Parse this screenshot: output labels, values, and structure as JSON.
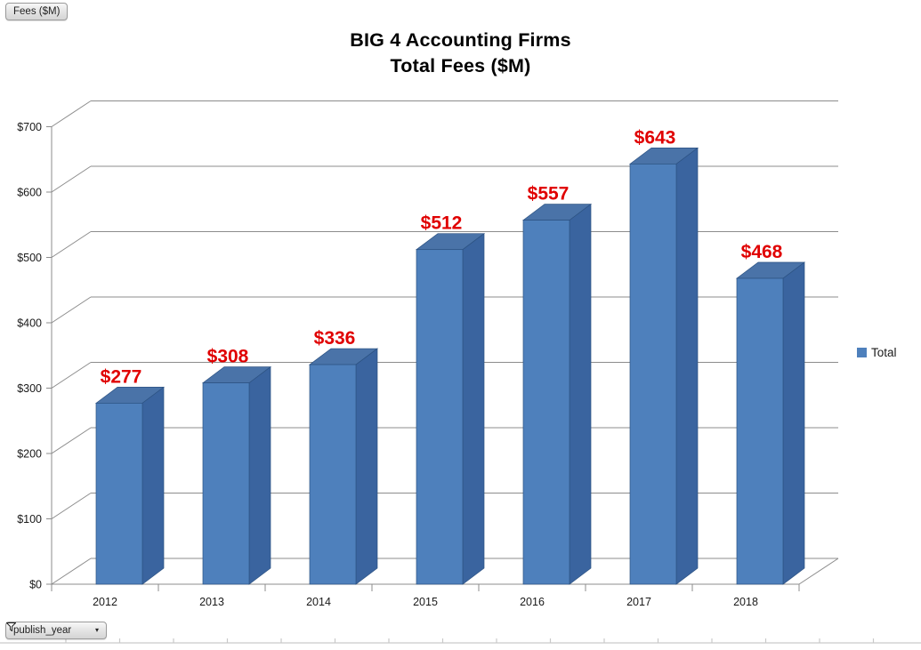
{
  "field_buttons": {
    "fees": "Fees ($M)",
    "publish_year": "publish_year"
  },
  "title": {
    "line1": "BIG 4 Accounting Firms",
    "line2": "Total Fees ($M)"
  },
  "legend": {
    "label": "Total",
    "color": "#4E80BC"
  },
  "chart_data": {
    "type": "bar",
    "style": "3d-column",
    "title": "BIG 4 Accounting Firms Total Fees ($M)",
    "categories": [
      "2012",
      "2013",
      "2014",
      "2015",
      "2016",
      "2017",
      "2018"
    ],
    "series": [
      {
        "name": "Total",
        "values": [
          277,
          308,
          336,
          512,
          557,
          643,
          468
        ]
      }
    ],
    "data_labels": [
      "$277",
      "$308",
      "$336",
      "$512",
      "$557",
      "$643",
      "$468"
    ],
    "data_label_color": "#E00000",
    "xlabel": "",
    "ylabel": "",
    "ylim": [
      0,
      700
    ],
    "ytick_step": 100,
    "ytick_labels": [
      "$0",
      "$100",
      "$200",
      "$300",
      "$400",
      "$500",
      "$600",
      "$700"
    ],
    "grid": true,
    "legend_position": "right",
    "colors": {
      "bar_front": "#4E80BC",
      "bar_top": "#4A73A8",
      "bar_side": "#3A649F",
      "bar_edge": "#2C5282",
      "grid": "#8C8C8C",
      "axis_text": "#1a1a1a",
      "sheet_line": "#c9c9c9"
    }
  }
}
